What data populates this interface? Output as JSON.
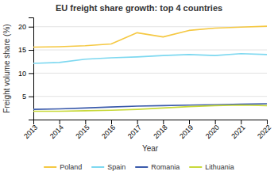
{
  "chart_data": {
    "type": "line",
    "title": "EU freight share growth: top 4 countries",
    "xlabel": "Year",
    "ylabel": "Freight volume share (%)",
    "x": [
      2013,
      2014,
      2015,
      2016,
      2017,
      2018,
      2019,
      2020,
      2021,
      2022
    ],
    "series": [
      {
        "name": "Poland",
        "color": "#f5c842",
        "values": [
          15.6,
          15.7,
          15.9,
          16.3,
          18.7,
          17.8,
          19.2,
          19.7,
          19.9,
          20.1
        ]
      },
      {
        "name": "Spain",
        "color": "#7dd8f0",
        "values": [
          12.1,
          12.3,
          13.0,
          13.3,
          13.5,
          13.8,
          14.0,
          13.8,
          14.2,
          14.0
        ]
      },
      {
        "name": "Romania",
        "color": "#3a5aab",
        "values": [
          2.2,
          2.3,
          2.5,
          2.7,
          2.9,
          3.0,
          3.1,
          3.2,
          3.3,
          3.4
        ]
      },
      {
        "name": "Lithuania",
        "color": "#c8d93a",
        "values": [
          1.8,
          1.8,
          1.9,
          2.0,
          2.2,
          2.5,
          2.8,
          3.0,
          3.1,
          3.0
        ]
      }
    ],
    "xlim": [
      2013,
      2022
    ],
    "xticks": [
      2013,
      2014,
      2015,
      2016,
      2017,
      2018,
      2019,
      2020,
      2021,
      2022
    ],
    "ylim": [
      0,
      22
    ],
    "yticks": [
      5,
      10,
      15,
      20
    ],
    "grid": true,
    "legend": "bottom"
  }
}
